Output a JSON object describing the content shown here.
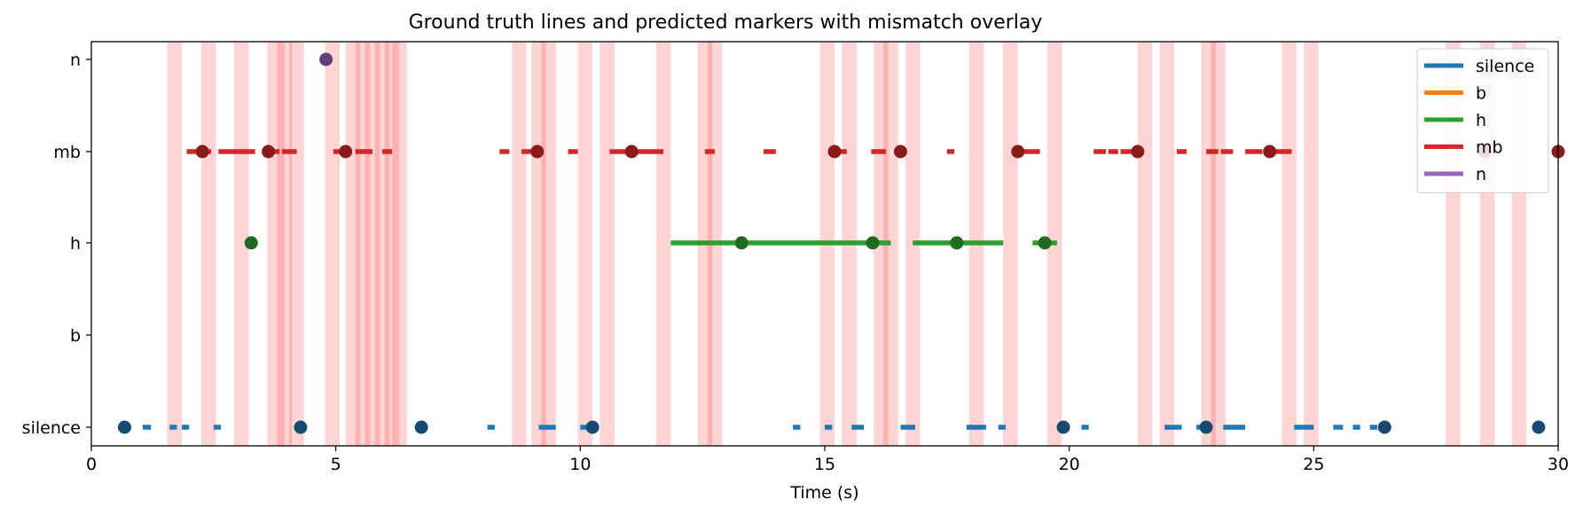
{
  "chart_data": {
    "type": "scatter",
    "title": "Ground truth lines and predicted markers with mismatch overlay",
    "xlabel": "Time (s)",
    "ylabel": "",
    "xlim": [
      0,
      30
    ],
    "x_ticks": [
      0,
      5,
      10,
      15,
      20,
      25,
      30
    ],
    "categories": [
      "silence",
      "b",
      "h",
      "mb",
      "n"
    ],
    "legend": {
      "placement": "top-right",
      "entries": [
        {
          "name": "silence",
          "color": "#1f77b4"
        },
        {
          "name": "b",
          "color": "#ff7f0e"
        },
        {
          "name": "h",
          "color": "#2ca02c"
        },
        {
          "name": "mb",
          "color": "#d62728"
        },
        {
          "name": "n",
          "color": "#9467bd"
        }
      ]
    },
    "mismatch_overlay": {
      "color": "#ff0000",
      "opacity": 0.17,
      "intervals": [
        [
          1.55,
          1.85
        ],
        [
          2.25,
          2.55
        ],
        [
          2.92,
          3.22
        ],
        [
          3.6,
          3.95
        ],
        [
          3.8,
          4.1
        ],
        [
          4.05,
          4.35
        ],
        [
          4.78,
          5.08
        ],
        [
          5.2,
          5.5
        ],
        [
          5.4,
          5.7
        ],
        [
          5.6,
          5.9
        ],
        [
          5.8,
          6.1
        ],
        [
          6.0,
          6.3
        ],
        [
          6.15,
          6.45
        ],
        [
          8.6,
          8.9
        ],
        [
          9.0,
          9.3
        ],
        [
          9.2,
          9.5
        ],
        [
          9.95,
          10.25
        ],
        [
          10.4,
          10.7
        ],
        [
          11.55,
          11.85
        ],
        [
          12.4,
          12.7
        ],
        [
          12.6,
          12.9
        ],
        [
          14.9,
          15.2
        ],
        [
          15.35,
          15.65
        ],
        [
          16.0,
          16.3
        ],
        [
          16.2,
          16.5
        ],
        [
          16.65,
          16.95
        ],
        [
          17.95,
          18.25
        ],
        [
          18.65,
          18.95
        ],
        [
          19.55,
          19.85
        ],
        [
          21.4,
          21.7
        ],
        [
          21.85,
          22.15
        ],
        [
          22.7,
          23.0
        ],
        [
          22.9,
          23.2
        ],
        [
          24.35,
          24.65
        ],
        [
          24.8,
          25.1
        ],
        [
          27.7,
          28.0
        ],
        [
          28.4,
          28.7
        ],
        [
          29.05,
          29.35
        ]
      ]
    },
    "series": [
      {
        "name": "silence",
        "category": "silence",
        "color": "#1f77b4",
        "marker_color": "#174a70",
        "segments": [
          [
            1.05,
            1.22
          ],
          [
            1.6,
            1.75
          ],
          [
            1.85,
            2.0
          ],
          [
            2.5,
            2.65
          ],
          [
            8.1,
            8.25
          ],
          [
            9.15,
            9.5
          ],
          [
            10.0,
            10.15
          ],
          [
            14.35,
            14.5
          ],
          [
            15.0,
            15.15
          ],
          [
            15.55,
            15.8
          ],
          [
            16.55,
            16.85
          ],
          [
            17.9,
            18.3
          ],
          [
            18.55,
            18.7
          ],
          [
            19.75,
            20.0
          ],
          [
            20.25,
            20.4
          ],
          [
            21.95,
            22.3
          ],
          [
            22.6,
            22.75
          ],
          [
            23.15,
            23.6
          ],
          [
            24.6,
            24.85
          ],
          [
            24.85,
            25.0
          ],
          [
            25.4,
            25.6
          ],
          [
            25.8,
            25.95
          ],
          [
            26.15,
            26.3
          ]
        ],
        "predicted": [
          0.68,
          4.28,
          6.75,
          10.25,
          19.88,
          22.8,
          26.45,
          29.6
        ]
      },
      {
        "name": "b",
        "category": "b",
        "color": "#ff7f0e",
        "marker_color": "#b3590a",
        "segments": [],
        "predicted": []
      },
      {
        "name": "h",
        "category": "h",
        "color": "#2ca02c",
        "marker_color": "#1f6b1f",
        "segments": [
          [
            11.85,
            16.35
          ],
          [
            16.8,
            18.65
          ],
          [
            19.25,
            19.75
          ]
        ],
        "predicted": [
          3.27,
          13.3,
          15.98,
          17.7,
          19.5
        ]
      },
      {
        "name": "mb",
        "category": "mb",
        "color": "#d62728",
        "marker_color": "#8b1a1a",
        "segments": [
          [
            1.95,
            2.45
          ],
          [
            2.6,
            3.35
          ],
          [
            3.6,
            3.85
          ],
          [
            3.9,
            4.2
          ],
          [
            4.95,
            5.1
          ],
          [
            5.4,
            5.75
          ],
          [
            5.95,
            6.15
          ],
          [
            8.35,
            8.55
          ],
          [
            8.8,
            9.05
          ],
          [
            9.75,
            9.95
          ],
          [
            10.6,
            11.7
          ],
          [
            12.55,
            12.75
          ],
          [
            13.75,
            14.0
          ],
          [
            15.2,
            15.45
          ],
          [
            15.95,
            16.25
          ],
          [
            16.45,
            16.6
          ],
          [
            17.5,
            17.65
          ],
          [
            18.9,
            19.4
          ],
          [
            20.5,
            20.75
          ],
          [
            20.8,
            21.0
          ],
          [
            21.05,
            21.4
          ],
          [
            22.2,
            22.4
          ],
          [
            22.8,
            23.05
          ],
          [
            23.1,
            23.35
          ],
          [
            23.6,
            23.95
          ],
          [
            24.15,
            24.55
          ]
        ],
        "predicted": [
          2.27,
          3.62,
          5.2,
          9.12,
          11.05,
          15.2,
          16.55,
          18.95,
          21.4,
          24.1,
          28.5,
          30.0
        ]
      },
      {
        "name": "n",
        "category": "n",
        "color": "#9467bd",
        "marker_color": "#5e3d7a",
        "segments": [],
        "predicted": [
          4.8
        ]
      }
    ]
  }
}
